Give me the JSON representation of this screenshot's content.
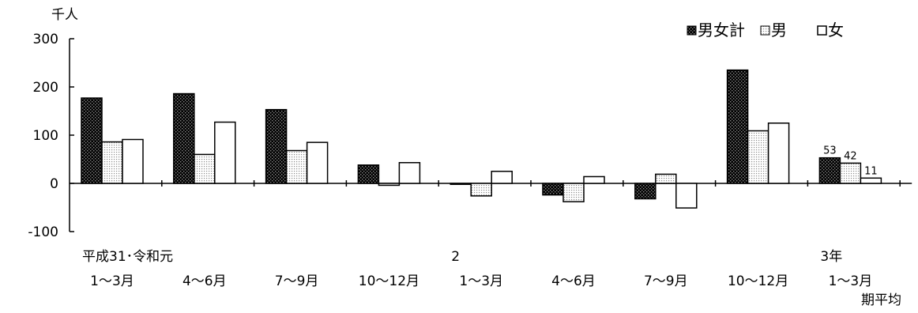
{
  "chart_data": {
    "type": "bar",
    "unit": "千人",
    "ylim": [
      -100,
      300
    ],
    "yticks": [
      -100,
      0,
      100,
      200,
      300
    ],
    "ytick_labels": [
      "-100",
      "0",
      "100",
      "200",
      "300"
    ],
    "grid": false,
    "legend_position": "top-right",
    "categories": [
      "1〜3月",
      "4〜6月",
      "7〜9月",
      "10〜12月",
      "1〜3月",
      "4〜6月",
      "7〜9月",
      "10〜12月",
      "1〜3月"
    ],
    "year_labels": [
      "平成31･令和元",
      "",
      "",
      "",
      "2",
      "",
      "",
      "",
      "3年"
    ],
    "note": "期平均",
    "series": [
      {
        "name": "男女計",
        "values": [
          177,
          186,
          153,
          38,
          -2,
          -24,
          -32,
          235,
          53
        ]
      },
      {
        "name": "男",
        "values": [
          86,
          60,
          68,
          -4,
          -26,
          -38,
          19,
          109,
          42
        ]
      },
      {
        "name": "女",
        "values": [
          91,
          127,
          85,
          43,
          25,
          14,
          -51,
          125,
          11
        ]
      }
    ],
    "data_labels": [
      {
        "series": 0,
        "index": 8,
        "text": "53"
      },
      {
        "series": 1,
        "index": 8,
        "text": "42"
      },
      {
        "series": 2,
        "index": 8,
        "text": "11"
      }
    ]
  }
}
